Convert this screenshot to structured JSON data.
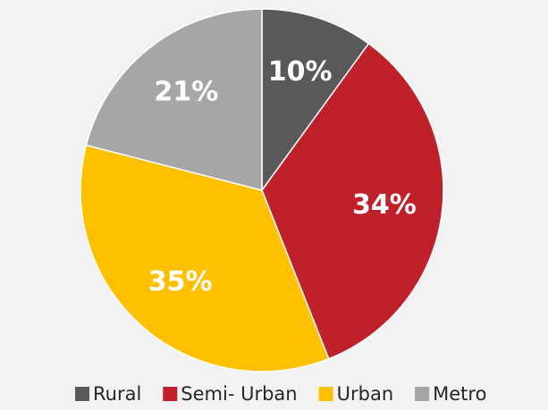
{
  "chart_data": {
    "type": "pie",
    "categories": [
      "Rural",
      "Semi- Urban",
      "Urban",
      "Metro"
    ],
    "values": [
      10,
      34,
      35,
      21
    ],
    "value_labels": [
      "10%",
      "34%",
      "35%",
      "21%"
    ],
    "colors": [
      "#595959",
      "#c0202a",
      "#ffc000",
      "#a6a6a6"
    ],
    "legend": "bottom"
  }
}
